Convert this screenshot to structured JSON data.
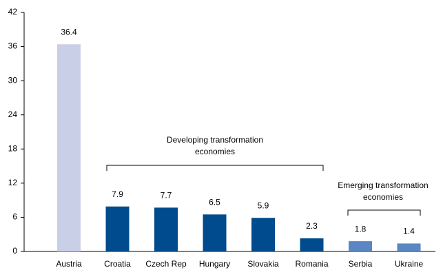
{
  "chart_data": {
    "type": "bar",
    "categories": [
      "Austria",
      "Croatia",
      "Czech Rep",
      "Hungary",
      "Slovakia",
      "Romania",
      "Serbia",
      "Ukraine"
    ],
    "values": [
      36.4,
      7.9,
      7.7,
      6.5,
      5.9,
      2.3,
      1.8,
      1.4
    ],
    "colors": [
      "#c9cfe6",
      "#004b8d",
      "#004b8d",
      "#004b8d",
      "#004b8d",
      "#004b8d",
      "#5a86c2",
      "#5a86c2"
    ],
    "ylim": [
      0,
      42
    ],
    "yticks": [
      0,
      6,
      12,
      18,
      24,
      30,
      36,
      42
    ],
    "grid": false,
    "annotations": [
      {
        "lines": [
          "Developing transformation",
          "economies"
        ]
      },
      {
        "lines": [
          "Emerging transformation",
          "economies"
        ]
      }
    ]
  }
}
